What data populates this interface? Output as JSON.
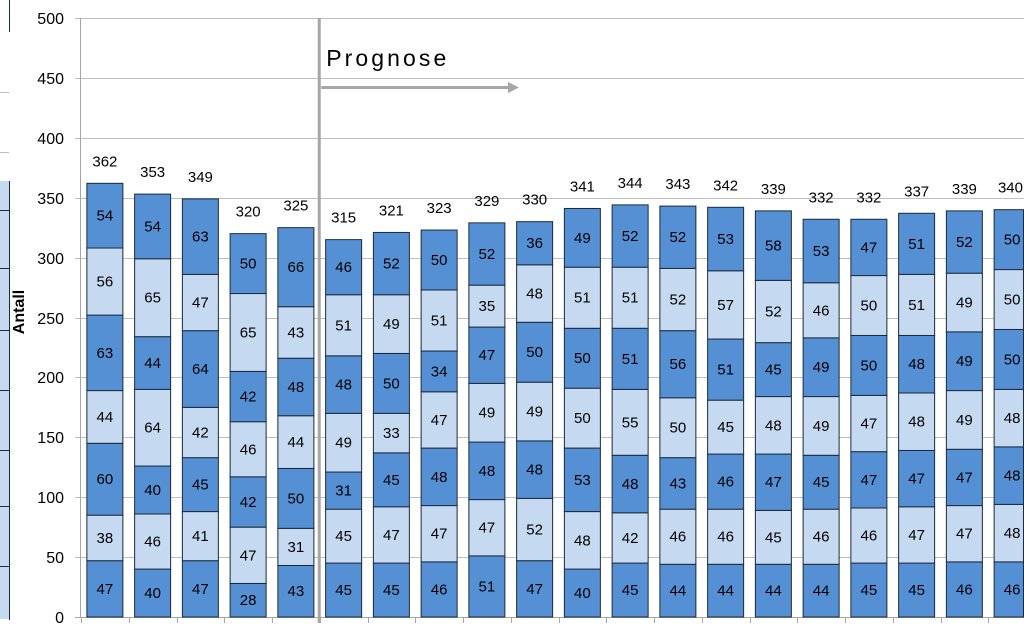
{
  "chart_data": {
    "type": "bar",
    "stacked": true,
    "ylabel": "Antall",
    "ylim": [
      0,
      500
    ],
    "yticks": [
      0,
      50,
      100,
      150,
      200,
      250,
      300,
      350,
      400,
      450,
      500
    ],
    "grid": true,
    "annotation": {
      "text": "Prognose",
      "start_index": 5
    },
    "totals": [
      362,
      353,
      349,
      320,
      325,
      315,
      321,
      323,
      329,
      330,
      341,
      344,
      343,
      342,
      339,
      332,
      332,
      337,
      339,
      340
    ],
    "series": [
      {
        "color": "#5590D5",
        "values": [
          47,
          40,
          47,
          28,
          43,
          45,
          45,
          46,
          51,
          47,
          40,
          45,
          44,
          44,
          44,
          44,
          45,
          45,
          46,
          46
        ]
      },
      {
        "color": "#C5D9F1",
        "values": [
          38,
          46,
          41,
          47,
          31,
          45,
          47,
          47,
          47,
          52,
          48,
          42,
          46,
          46,
          45,
          46,
          46,
          47,
          47,
          48
        ]
      },
      {
        "color": "#5590D5",
        "values": [
          60,
          40,
          45,
          42,
          50,
          31,
          45,
          48,
          48,
          48,
          53,
          48,
          43,
          46,
          47,
          45,
          47,
          47,
          47,
          48
        ]
      },
      {
        "color": "#C5D9F1",
        "values": [
          44,
          64,
          42,
          46,
          44,
          49,
          33,
          47,
          49,
          49,
          50,
          55,
          50,
          45,
          48,
          49,
          47,
          48,
          49,
          48
        ]
      },
      {
        "color": "#5590D5",
        "values": [
          63,
          44,
          64,
          42,
          48,
          48,
          50,
          34,
          47,
          50,
          50,
          51,
          56,
          51,
          45,
          49,
          50,
          48,
          49,
          50
        ]
      },
      {
        "color": "#C5D9F1",
        "values": [
          56,
          65,
          47,
          65,
          43,
          51,
          49,
          51,
          35,
          48,
          51,
          51,
          52,
          57,
          52,
          46,
          50,
          51,
          49,
          50
        ]
      },
      {
        "color": "#5590D5",
        "values": [
          54,
          54,
          63,
          50,
          66,
          46,
          52,
          50,
          52,
          36,
          49,
          52,
          52,
          53,
          58,
          53,
          47,
          51,
          52,
          50
        ]
      }
    ]
  },
  "colors": {
    "segment_border": "#1B2A3C",
    "grid": "#BFBFBF",
    "axis": "#A6A6A6",
    "divider": "#A6A6A6",
    "text": "#000000"
  }
}
